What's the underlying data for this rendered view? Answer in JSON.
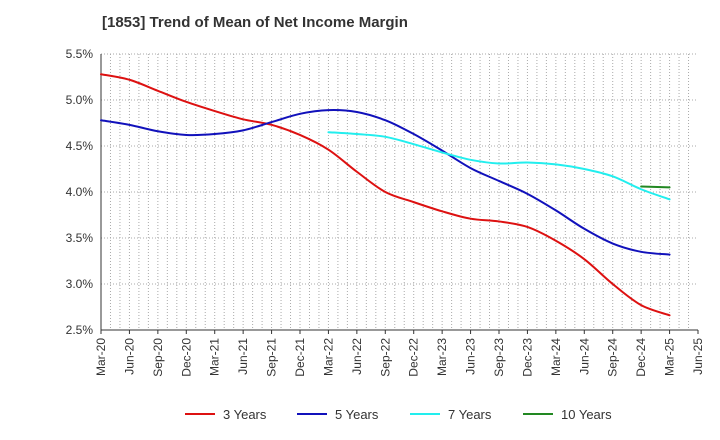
{
  "chart_data": {
    "type": "line",
    "title": "[1853]  Trend of Mean of Net Income Margin",
    "xlabel": "",
    "ylabel": "",
    "x_tick_labels": [
      "Mar-20",
      "Jun-20",
      "Sep-20",
      "Dec-20",
      "Mar-21",
      "Jun-21",
      "Sep-21",
      "Dec-21",
      "Mar-22",
      "Jun-22",
      "Sep-22",
      "Dec-22",
      "Mar-23",
      "Jun-23",
      "Sep-23",
      "Dec-23",
      "Mar-24",
      "Jun-24",
      "Sep-24",
      "Dec-24",
      "Mar-25",
      "Jun-25"
    ],
    "y_tick_labels": [
      "2.5%",
      "3.0%",
      "3.5%",
      "4.0%",
      "4.5%",
      "5.0%",
      "5.5%"
    ],
    "ylim": [
      2.5,
      5.5
    ],
    "y_ticks": [
      2.5,
      3.0,
      3.5,
      4.0,
      4.5,
      5.0,
      5.5
    ],
    "grid": true,
    "legend_position": "bottom",
    "series": [
      {
        "name": "3 Years",
        "color": "#dd1111",
        "x": [
          "Mar-20",
          "Jun-20",
          "Sep-20",
          "Dec-20",
          "Mar-21",
          "Jun-21",
          "Sep-21",
          "Dec-21",
          "Mar-22",
          "Jun-22",
          "Sep-22",
          "Dec-22",
          "Mar-23",
          "Jun-23",
          "Sep-23",
          "Dec-23",
          "Mar-24",
          "Jun-24",
          "Sep-24",
          "Dec-24",
          "Mar-25"
        ],
        "values": [
          5.28,
          5.22,
          5.1,
          4.98,
          4.88,
          4.79,
          4.73,
          4.62,
          4.46,
          4.22,
          4.0,
          3.89,
          3.79,
          3.71,
          3.68,
          3.62,
          3.47,
          3.27,
          3.0,
          2.77,
          2.66
        ]
      },
      {
        "name": "5 Years",
        "color": "#1111bb",
        "x": [
          "Mar-20",
          "Jun-20",
          "Sep-20",
          "Dec-20",
          "Mar-21",
          "Jun-21",
          "Sep-21",
          "Dec-21",
          "Mar-22",
          "Jun-22",
          "Sep-22",
          "Dec-22",
          "Mar-23",
          "Jun-23",
          "Sep-23",
          "Dec-23",
          "Mar-24",
          "Jun-24",
          "Sep-24",
          "Dec-24",
          "Mar-25"
        ],
        "values": [
          4.78,
          4.73,
          4.66,
          4.62,
          4.63,
          4.67,
          4.76,
          4.85,
          4.89,
          4.87,
          4.78,
          4.63,
          4.45,
          4.26,
          4.12,
          3.98,
          3.8,
          3.6,
          3.44,
          3.35,
          3.32
        ]
      },
      {
        "name": "7 Years",
        "color": "#22eeee",
        "x": [
          "Mar-22",
          "Jun-22",
          "Sep-22",
          "Dec-22",
          "Mar-23",
          "Jun-23",
          "Sep-23",
          "Dec-23",
          "Mar-24",
          "Jun-24",
          "Sep-24",
          "Dec-24",
          "Mar-25"
        ],
        "values": [
          4.65,
          4.63,
          4.6,
          4.52,
          4.43,
          4.35,
          4.31,
          4.32,
          4.3,
          4.25,
          4.17,
          4.03,
          3.92
        ]
      },
      {
        "name": "10 Years",
        "color": "#228822",
        "x": [
          "Dec-24",
          "Mar-25"
        ],
        "values": [
          4.06,
          4.05
        ]
      }
    ]
  }
}
